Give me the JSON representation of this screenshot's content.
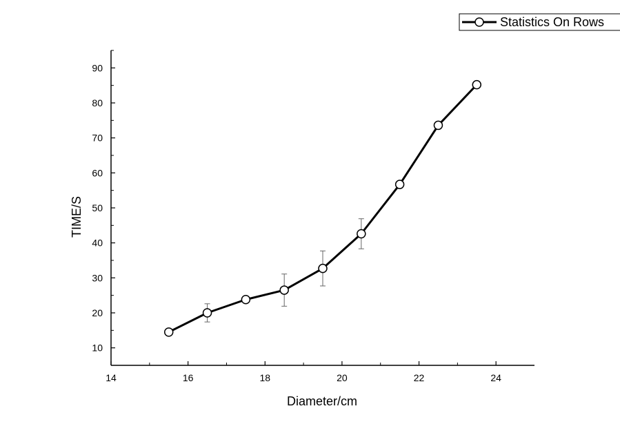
{
  "legend": {
    "label": "Statistics On Rows"
  },
  "axes": {
    "xlabel": "Diameter/cm",
    "ylabel": "TIME/S"
  },
  "chart_data": {
    "type": "line",
    "xlabel": "Diameter/cm",
    "ylabel": "TIME/S",
    "xlim": [
      14,
      25
    ],
    "ylim": [
      5,
      95
    ],
    "x_ticks": [
      14,
      16,
      18,
      20,
      22,
      24
    ],
    "y_ticks": [
      10,
      20,
      30,
      40,
      50,
      60,
      70,
      80,
      90
    ],
    "grid": false,
    "legend_position": "top-right",
    "series": [
      {
        "name": "Statistics On Rows",
        "marker": "open-circle",
        "color": "#000000",
        "x": [
          15.5,
          16.5,
          17.5,
          18.5,
          19.5,
          20.5,
          21.5,
          22.5,
          23.5
        ],
        "y": [
          14.5,
          20.0,
          23.8,
          26.5,
          32.7,
          42.6,
          56.7,
          73.6,
          85.2
        ],
        "error": [
          0.9,
          2.6,
          0.8,
          4.6,
          5.0,
          4.3,
          0.9,
          1.0,
          0.6
        ]
      }
    ]
  }
}
